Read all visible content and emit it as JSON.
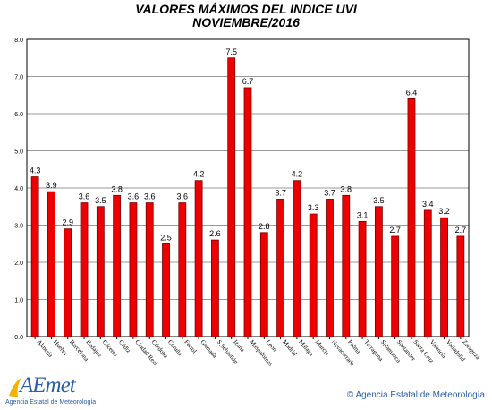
{
  "header": {
    "title": "VALORES MÁXIMOS DEL INDICE UVI",
    "subtitle": "NOVIEMBRE/2016"
  },
  "footer": {
    "logo_text": "AEmet",
    "logo_subtitle": "Agencia Estatal de Meteorología",
    "copyright": "© Agencia Estatal de Meteorología"
  },
  "colors": {
    "bar": "#ee0000",
    "bar_stroke": "#7a0000",
    "grid": "#9a9a9a",
    "brand": "#2a5ea8"
  },
  "chart_data": {
    "type": "bar",
    "title": "VALORES MÁXIMOS DEL INDICE UVI",
    "subtitle": "NOVIEMBRE/2016",
    "xlabel": "",
    "ylabel": "",
    "ylim": [
      0,
      8
    ],
    "yticks": [
      "0.0",
      "1.0",
      "2.0",
      "3.0",
      "4.0",
      "5.0",
      "6.0",
      "7.0",
      "8.0"
    ],
    "grid": true,
    "categories": [
      "Almería",
      "Huelva",
      "Barcelona",
      "Badajoz",
      "Cáceres",
      "Cádiz",
      "Ciudad Real",
      "Córdoba",
      "Coruña",
      "Ferrol",
      "Granada",
      "S.Sebastián",
      "Izaña",
      "Maspalomas",
      "León",
      "Madrid",
      "Málaga",
      "Murcia",
      "Navacerrada",
      "Palma",
      "Tarragona",
      "Salamanca",
      "Santander",
      "Santa Cruz",
      "Valencia",
      "Valladolid",
      "Zaragoza"
    ],
    "values": [
      4.3,
      3.9,
      2.9,
      3.6,
      3.5,
      3.8,
      3.6,
      3.6,
      2.5,
      3.6,
      4.2,
      2.6,
      7.5,
      6.7,
      2.8,
      3.7,
      4.2,
      3.3,
      3.7,
      3.8,
      3.1,
      3.5,
      2.7,
      6.4,
      3.4,
      3.2,
      2.7
    ]
  }
}
